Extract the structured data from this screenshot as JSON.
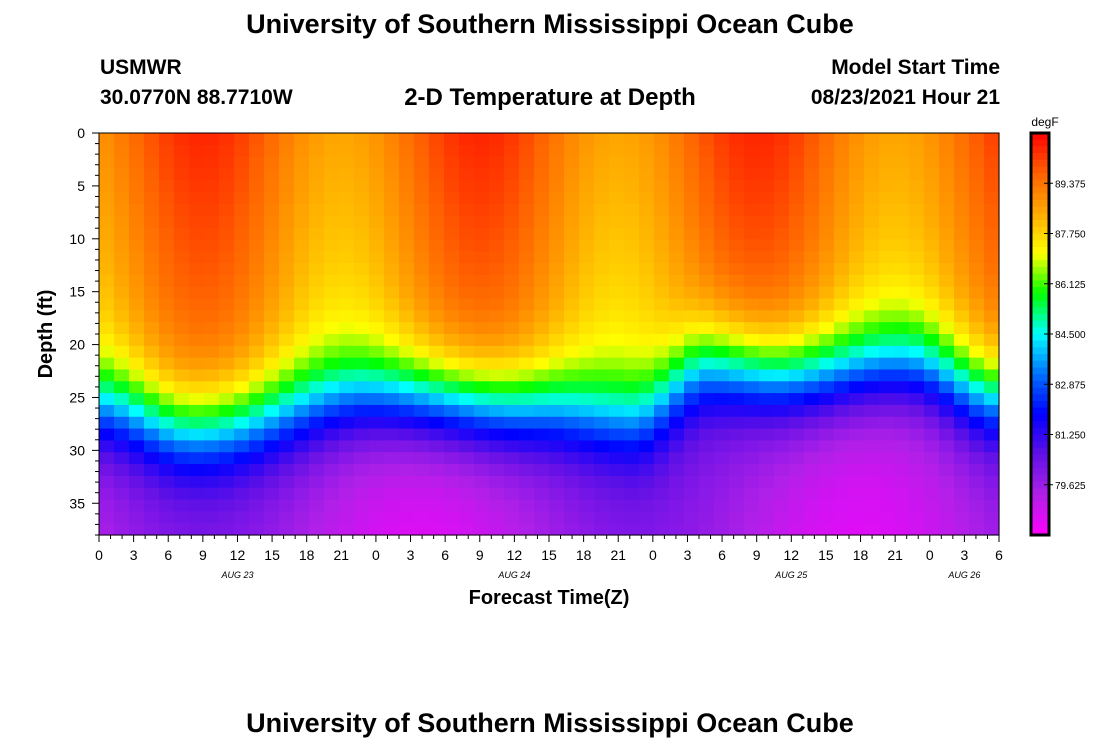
{
  "header": {
    "title": "University of Southern Mississippi Ocean Cube",
    "station": "USMWR",
    "coordinates": "30.0770N  88.7710W",
    "plot_name": "2-D Temperature at Depth",
    "model_start_label": "Model Start Time",
    "model_start_value": "08/23/2021 Hour 21"
  },
  "footer": {
    "title": "University of Southern Mississippi Ocean Cube"
  },
  "colors": {
    "scale": [
      "#ff00ff",
      "#b020e8",
      "#6010e6",
      "#0000ff",
      "#0070ff",
      "#00ffff",
      "#00ff00",
      "#ffff00",
      "#ffaa00",
      "#ff6000",
      "#ff0000"
    ]
  },
  "chart_data": {
    "type": "heatmap",
    "title": "2-D Temperature at Depth",
    "xlabel": "Forecast Time(Z)",
    "ylabel": "Depth (ft)",
    "x_range_hours": [
      0,
      78
    ],
    "y_range_ft": [
      0,
      38
    ],
    "x_ticks": [
      "0",
      "3",
      "6",
      "9",
      "12",
      "15",
      "18",
      "21",
      "0",
      "3",
      "6",
      "9",
      "12",
      "15",
      "18",
      "21",
      "0",
      "3",
      "6",
      "9",
      "12",
      "15",
      "18",
      "21",
      "0",
      "3",
      "6"
    ],
    "date_labels": [
      {
        "label": "AUG 23",
        "hour": 12
      },
      {
        "label": "AUG 24",
        "hour": 36
      },
      {
        "label": "AUG 25",
        "hour": 60
      },
      {
        "label": "AUG 26",
        "hour": 75
      }
    ],
    "y_ticks": [
      0,
      5,
      10,
      15,
      20,
      25,
      30,
      35
    ],
    "colorbar": {
      "unit": "degF",
      "ticks": [
        "89.375",
        "87.750",
        "86.125",
        "84.500",
        "82.875",
        "81.250",
        "79.625"
      ],
      "min": 78.0,
      "max": 91.0
    },
    "approx_field": {
      "surface_temp_range_degF": [
        88.5,
        90.5
      ],
      "bottom_temp_range_degF": [
        78.5,
        80.0
      ],
      "thermocline_depth_ft": [
        {
          "hour": 0,
          "depth": 26
        },
        {
          "hour": 8,
          "depth": 28
        },
        {
          "hour": 24,
          "depth": 25
        },
        {
          "hour": 38,
          "depth": 26
        },
        {
          "hour": 46,
          "depth": 27
        },
        {
          "hour": 53,
          "depth": 22
        },
        {
          "hour": 60,
          "depth": 23
        },
        {
          "hour": 70,
          "depth": 22
        },
        {
          "hour": 78,
          "depth": 25
        }
      ]
    }
  }
}
